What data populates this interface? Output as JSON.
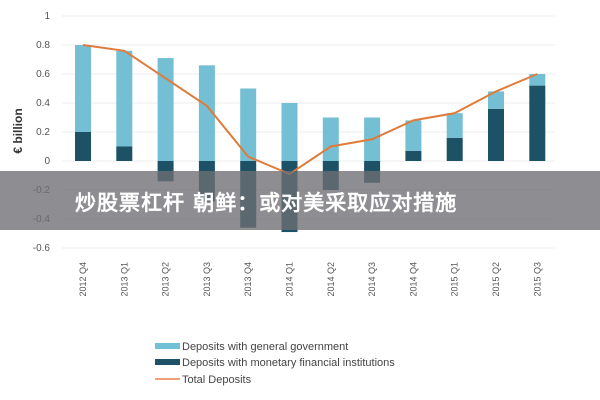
{
  "chart_data": {
    "type": "bar",
    "stacked": true,
    "ylabel": "€ billion",
    "ylim": [
      -0.6,
      1
    ],
    "yticks": [
      "1",
      "0.8",
      "0.6",
      "0.4",
      "0.2",
      "0",
      "-0.2",
      "-0.4",
      "-0.6"
    ],
    "grid": true,
    "legend_position": "bottom",
    "categories": [
      "2012 Q4",
      "2013 Q1",
      "2013 Q2",
      "2013 Q3",
      "2013 Q4",
      "2014 Q1",
      "2014 Q2",
      "2014 Q3",
      "2014 Q4",
      "2015 Q1",
      "2015 Q2",
      "2015 Q3"
    ],
    "series": [
      {
        "name": "Deposits with general government",
        "kind": "bar",
        "color": "#74bfd3",
        "values": [
          0.6,
          0.66,
          0.71,
          0.66,
          0.5,
          0.4,
          0.3,
          0.3,
          0.21,
          0.17,
          0.12,
          0.08
        ]
      },
      {
        "name": "Deposits with monetary financial institutions",
        "kind": "bar",
        "color": "#1d5266",
        "values": [
          0.2,
          0.1,
          -0.14,
          -0.28,
          -0.46,
          -0.49,
          -0.2,
          -0.15,
          0.07,
          0.16,
          0.36,
          0.52
        ]
      },
      {
        "name": "Total Deposits",
        "kind": "line",
        "color": "#e07b39",
        "values": [
          0.8,
          0.76,
          0.57,
          0.38,
          0.03,
          -0.09,
          0.1,
          0.15,
          0.28,
          0.33,
          0.48,
          0.6
        ]
      }
    ]
  },
  "banner": {
    "text": "炒股票杠杆 朝鲜：或对美采取应对措施"
  }
}
